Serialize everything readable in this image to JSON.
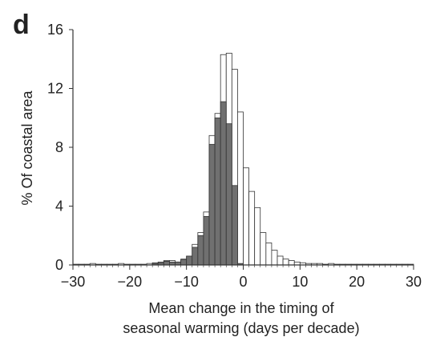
{
  "chart_data": {
    "type": "histogram",
    "panel_label": "d",
    "ylabel": "% Of coastal area",
    "xlabel": [
      "Mean change in the timing of",
      "seasonal warming (days per decade)"
    ],
    "bins": [
      -30,
      -29,
      -28,
      -27,
      -26,
      -25,
      -24,
      -23,
      -22,
      -21,
      -20,
      -19,
      -18,
      -17,
      -16,
      -15,
      -14,
      -13,
      -12,
      -11,
      -10,
      -9,
      -8,
      -7,
      -6,
      -5,
      -4,
      -3,
      -2,
      -1,
      0,
      1,
      2,
      3,
      4,
      5,
      6,
      7,
      8,
      9,
      10,
      11,
      12,
      13,
      14,
      15,
      16,
      17,
      18,
      19,
      20,
      21,
      22,
      23,
      24,
      25,
      26,
      27,
      28,
      29,
      30
    ],
    "series": [
      {
        "color": "#ffffff",
        "values": [
          0.05,
          0.05,
          0.05,
          0.1,
          0.05,
          0.05,
          0.05,
          0.05,
          0.1,
          0.05,
          0.05,
          0.05,
          0.05,
          0.1,
          0.15,
          0.2,
          0.3,
          0.3,
          0.2,
          0.4,
          0.6,
          1.4,
          2.2,
          3.6,
          8.8,
          10.3,
          14.3,
          14.4,
          13.3,
          10.4,
          6.6,
          5.0,
          3.9,
          2.2,
          1.5,
          1.0,
          0.6,
          0.4,
          0.3,
          0.2,
          0.15,
          0.1,
          0.1,
          0.1,
          0.05,
          0.1,
          0.05,
          0.05,
          0.05,
          0.05,
          0.05,
          0.05,
          0.05,
          0.05,
          0.05,
          0.05,
          0.05,
          0.05,
          0.05,
          0.05
        ]
      },
      {
        "color": "#707070",
        "values": [
          0,
          0,
          0,
          0,
          0,
          0,
          0,
          0,
          0,
          0,
          0,
          0,
          0,
          0,
          0.1,
          0.15,
          0.25,
          0.2,
          0.2,
          0.35,
          0.6,
          1.2,
          2.0,
          3.3,
          8.2,
          10.0,
          11.1,
          9.6,
          5.4,
          0.1,
          0,
          0,
          0,
          0,
          0,
          0,
          0,
          0,
          0,
          0,
          0,
          0,
          0,
          0,
          0,
          0,
          0,
          0,
          0,
          0,
          0,
          0,
          0,
          0,
          0,
          0,
          0,
          0,
          0,
          0
        ]
      }
    ],
    "xlim": [
      -30,
      30
    ],
    "xticks": [
      {
        "value": -30,
        "label": "−30"
      },
      {
        "value": -20,
        "label": "−20"
      },
      {
        "value": -10,
        "label": "−10"
      },
      0,
      10,
      20,
      30
    ],
    "ylim": [
      0,
      16
    ],
    "yticks": [
      0,
      4,
      8,
      12,
      16
    ]
  }
}
